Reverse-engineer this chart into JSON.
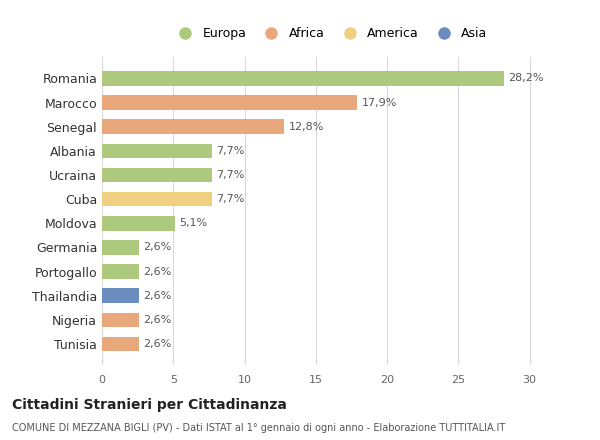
{
  "categories": [
    "Romania",
    "Marocco",
    "Senegal",
    "Albania",
    "Ucraina",
    "Cuba",
    "Moldova",
    "Germania",
    "Portogallo",
    "Thailandia",
    "Nigeria",
    "Tunisia"
  ],
  "values": [
    28.2,
    17.9,
    12.8,
    7.7,
    7.7,
    7.7,
    5.1,
    2.6,
    2.6,
    2.6,
    2.6,
    2.6
  ],
  "colors": [
    "#adc97e",
    "#e8a87c",
    "#e8a87c",
    "#adc97e",
    "#adc97e",
    "#f0d080",
    "#adc97e",
    "#adc97e",
    "#adc97e",
    "#6b8cbf",
    "#e8a87c",
    "#e8a87c"
  ],
  "labels": [
    "28,2%",
    "17,9%",
    "12,8%",
    "7,7%",
    "7,7%",
    "7,7%",
    "5,1%",
    "2,6%",
    "2,6%",
    "2,6%",
    "2,6%",
    "2,6%"
  ],
  "legend": [
    {
      "label": "Europa",
      "color": "#adc97e"
    },
    {
      "label": "Africa",
      "color": "#e8a87c"
    },
    {
      "label": "America",
      "color": "#f0d080"
    },
    {
      "label": "Asia",
      "color": "#6b8cbf"
    }
  ],
  "title": "Cittadini Stranieri per Cittadinanza",
  "subtitle": "COMUNE DI MEZZANA BIGLI (PV) - Dati ISTAT al 1° gennaio di ogni anno - Elaborazione TUTTITALIA.IT",
  "xlim": [
    0,
    32
  ],
  "xticks": [
    0,
    5,
    10,
    15,
    20,
    25,
    30
  ],
  "background_color": "#ffffff",
  "grid_color": "#d8d8d8"
}
